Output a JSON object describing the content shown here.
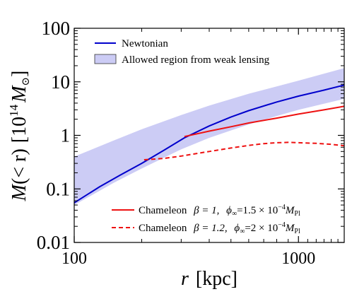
{
  "chart_data": {
    "type": "line",
    "x_scale": "log",
    "y_scale": "log",
    "xlim": [
      100,
      1600
    ],
    "ylim": [
      0.01,
      100
    ],
    "x_ticks": [
      {
        "value": 100,
        "label": "100"
      },
      {
        "value": 1000,
        "label": "1000"
      }
    ],
    "y_ticks": [
      {
        "value": 0.01,
        "label": "0.01"
      },
      {
        "value": 0.1,
        "label": "0.1"
      },
      {
        "value": 1,
        "label": "1"
      },
      {
        "value": 10,
        "label": "10"
      },
      {
        "value": 100,
        "label": "100"
      }
    ],
    "xlabel": {
      "var": "r",
      "unit": "[kpc]"
    },
    "ylabel": {
      "func": "M",
      "arg": "(< r)",
      "unit_open": "[10",
      "unit_exp": "14",
      "unit_sym": "M",
      "unit_sub": "⊙",
      "unit_close": "]"
    },
    "band": {
      "name": "Allowed region from weak lensing",
      "color": "#ccccf5",
      "x": [
        100,
        150,
        200,
        300,
        400,
        600,
        800,
        1000,
        1600
      ],
      "lower": [
        0.05,
        0.13,
        0.24,
        0.55,
        0.9,
        1.6,
        2.3,
        3.0,
        4.8
      ],
      "upper": [
        0.4,
        0.8,
        1.3,
        2.4,
        3.6,
        6.0,
        8.2,
        10.5,
        18.0
      ]
    },
    "series": [
      {
        "name": "Newtonian",
        "color": "#0000cc",
        "dash": "solid",
        "x": [
          100,
          130,
          160,
          200,
          250,
          310,
          400,
          500,
          600,
          800,
          1000,
          1300,
          1600
        ],
        "y": [
          0.055,
          0.11,
          0.18,
          0.3,
          0.52,
          0.9,
          1.5,
          2.2,
          2.9,
          4.2,
          5.4,
          7.0,
          8.7
        ]
      },
      {
        "name": "Chameleon",
        "color": "#ee1111",
        "dash": "solid",
        "label_prefix": "Chameleon",
        "beta": "β = 1,",
        "phi": "ϕ",
        "phi_sub": "∞",
        "phi_val": "=1.5 × 10",
        "phi_exp": "−4",
        "mass": "M",
        "mass_sub": "Pl",
        "x": [
          310,
          400,
          500,
          600,
          800,
          1000,
          1300,
          1600
        ],
        "y": [
          0.95,
          1.2,
          1.45,
          1.7,
          2.1,
          2.5,
          3.0,
          3.5
        ]
      },
      {
        "name": "Chameleon",
        "color": "#ee1111",
        "dash": "dashed",
        "label_prefix": "Chameleon",
        "beta": "β = 1.2,",
        "phi": "ϕ",
        "phi_sub": "∞",
        "phi_val": "=2 × 10",
        "phi_exp": "−4",
        "mass": "M",
        "mass_sub": "Pl",
        "x": [
          205,
          250,
          300,
          400,
          500,
          600,
          700,
          800,
          900,
          1000,
          1200,
          1400,
          1600
        ],
        "y": [
          0.35,
          0.37,
          0.41,
          0.5,
          0.58,
          0.65,
          0.7,
          0.73,
          0.74,
          0.73,
          0.71,
          0.68,
          0.64
        ]
      }
    ],
    "legend_placement": "top-left and bottom-right"
  }
}
